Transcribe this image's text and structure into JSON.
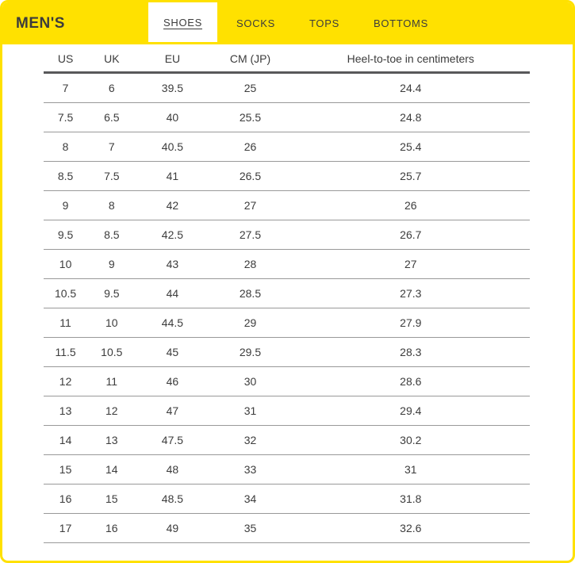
{
  "page": {
    "title": "MEN'S"
  },
  "tabs": [
    {
      "label": "SHOES",
      "active": true
    },
    {
      "label": "SOCKS",
      "active": false
    },
    {
      "label": "TOPS",
      "active": false
    },
    {
      "label": "BOTTOMS",
      "active": false
    }
  ],
  "colors": {
    "brand_yellow": "#FFE100",
    "text_dark": "#3C3C3C",
    "header_rule": "#58585A",
    "row_rule": "#999999"
  },
  "size_table": {
    "columns": [
      "US",
      "UK",
      "EU",
      "CM (JP)",
      "Heel-to-toe in centimeters"
    ],
    "rows": [
      [
        "7",
        "6",
        "39.5",
        "25",
        "24.4"
      ],
      [
        "7.5",
        "6.5",
        "40",
        "25.5",
        "24.8"
      ],
      [
        "8",
        "7",
        "40.5",
        "26",
        "25.4"
      ],
      [
        "8.5",
        "7.5",
        "41",
        "26.5",
        "25.7"
      ],
      [
        "9",
        "8",
        "42",
        "27",
        "26"
      ],
      [
        "9.5",
        "8.5",
        "42.5",
        "27.5",
        "26.7"
      ],
      [
        "10",
        "9",
        "43",
        "28",
        "27"
      ],
      [
        "10.5",
        "9.5",
        "44",
        "28.5",
        "27.3"
      ],
      [
        "11",
        "10",
        "44.5",
        "29",
        "27.9"
      ],
      [
        "11.5",
        "10.5",
        "45",
        "29.5",
        "28.3"
      ],
      [
        "12",
        "11",
        "46",
        "30",
        "28.6"
      ],
      [
        "13",
        "12",
        "47",
        "31",
        "29.4"
      ],
      [
        "14",
        "13",
        "47.5",
        "32",
        "30.2"
      ],
      [
        "15",
        "14",
        "48",
        "33",
        "31"
      ],
      [
        "16",
        "15",
        "48.5",
        "34",
        "31.8"
      ],
      [
        "17",
        "16",
        "49",
        "35",
        "32.6"
      ]
    ]
  }
}
